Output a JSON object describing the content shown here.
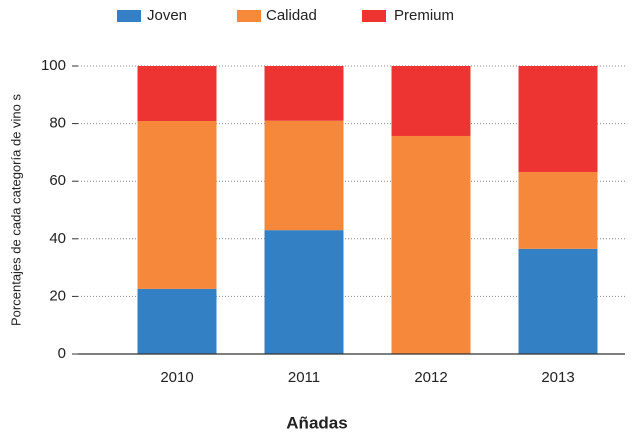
{
  "chart_data": {
    "type": "stacked_bar",
    "x_label": "Añadas",
    "y_label": "Porcentajes de cada categoría de vino s",
    "categories": [
      "2010",
      "2011",
      "2012",
      "2013"
    ],
    "series": [
      {
        "name": "Joven",
        "color": "#3380c4",
        "values": [
          22.6,
          43,
          0,
          36.5
        ]
      },
      {
        "name": "Calidad",
        "color": "#f5883b",
        "values": [
          58.3,
          38,
          75.7,
          26.7
        ]
      },
      {
        "name": "Premium",
        "color": "#ee3333",
        "values": [
          19.1,
          19,
          24.3,
          36.8
        ]
      }
    ],
    "ylim": [
      0,
      100
    ],
    "yticks": [
      0,
      20,
      40,
      60,
      80,
      100
    ],
    "grid": true
  }
}
